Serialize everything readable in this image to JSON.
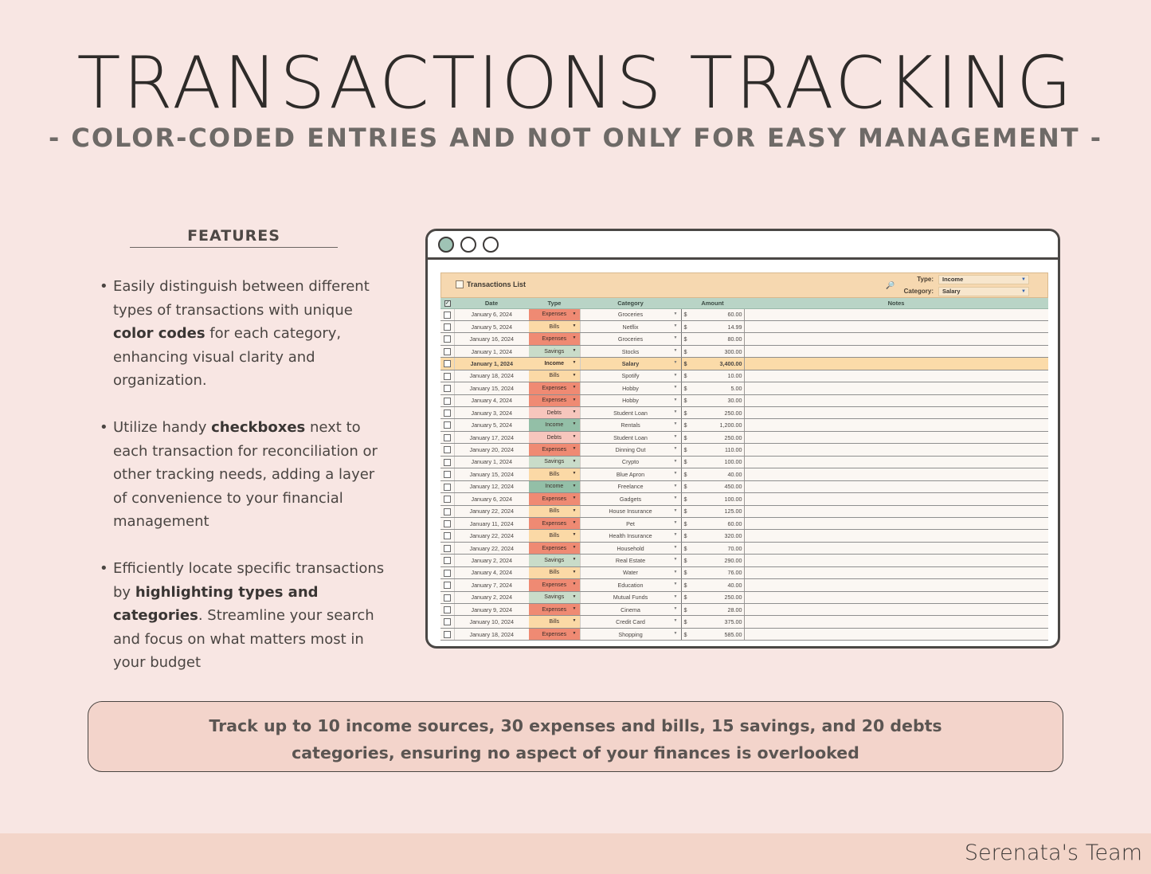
{
  "header": {
    "title": "TRANSACTIONS TRACKING",
    "subtitle": "- COLOR-CODED ENTRIES AND NOT ONLY FOR EASY MANAGEMENT -"
  },
  "features": {
    "title": "FEATURES",
    "items": [
      {
        "pre": "Easily distinguish between different types of transactions with unique ",
        "bold": "color codes",
        "post": " for each category, enhancing visual clarity and organization."
      },
      {
        "pre": "Utilize handy ",
        "bold": "checkboxes",
        "post": " next to each transaction for reconciliation or other tracking needs, adding a layer of convenience to your financial management"
      },
      {
        "pre": "Efficiently locate specific transactions by ",
        "bold": "highlighting types and categories",
        "post": ". Streamline your search and focus on what matters most in your budget"
      }
    ]
  },
  "sheet": {
    "title": "Transactions List",
    "filter_type_label": "Type:",
    "filter_type_value": "Income",
    "filter_category_label": "Category:",
    "filter_category_value": "Salary",
    "columns": [
      "Date",
      "Type",
      "Category",
      "Amount",
      "Notes"
    ],
    "currency": "$",
    "rows": [
      {
        "date": "January 6, 2024",
        "type": "Expenses",
        "category": "Groceries",
        "amount": "60.00"
      },
      {
        "date": "January 5, 2024",
        "type": "Bills",
        "category": "Netflix",
        "amount": "14.99"
      },
      {
        "date": "January 16, 2024",
        "type": "Expenses",
        "category": "Groceries",
        "amount": "80.00"
      },
      {
        "date": "January 1, 2024",
        "type": "Savings",
        "category": "Stocks",
        "amount": "300.00"
      },
      {
        "date": "January 1, 2024",
        "type": "Income",
        "category": "Salary",
        "amount": "3,400.00",
        "highlight": true
      },
      {
        "date": "January 18, 2024",
        "type": "Bills",
        "category": "Spotify",
        "amount": "10.00"
      },
      {
        "date": "January 15, 2024",
        "type": "Expenses",
        "category": "Hobby",
        "amount": "5.00"
      },
      {
        "date": "January 4, 2024",
        "type": "Expenses",
        "category": "Hobby",
        "amount": "30.00"
      },
      {
        "date": "January 3, 2024",
        "type": "Debts",
        "category": "Student Loan",
        "amount": "250.00"
      },
      {
        "date": "January 5, 2024",
        "type": "Income",
        "category": "Rentals",
        "amount": "1,200.00"
      },
      {
        "date": "January 17, 2024",
        "type": "Debts",
        "category": "Student Loan",
        "amount": "250.00"
      },
      {
        "date": "January 20, 2024",
        "type": "Expenses",
        "category": "Dinning Out",
        "amount": "110.00"
      },
      {
        "date": "January 1, 2024",
        "type": "Savings",
        "category": "Crypto",
        "amount": "100.00"
      },
      {
        "date": "January 15, 2024",
        "type": "Bills",
        "category": "Blue Apron",
        "amount": "40.00"
      },
      {
        "date": "January 12, 2024",
        "type": "Income",
        "category": "Freelance",
        "amount": "450.00"
      },
      {
        "date": "January 6, 2024",
        "type": "Expenses",
        "category": "Gadgets",
        "amount": "100.00"
      },
      {
        "date": "January 22, 2024",
        "type": "Bills",
        "category": "House Insurance",
        "amount": "125.00"
      },
      {
        "date": "January 11, 2024",
        "type": "Expenses",
        "category": "Pet",
        "amount": "60.00"
      },
      {
        "date": "January 22, 2024",
        "type": "Bills",
        "category": "Health Insurance",
        "amount": "320.00"
      },
      {
        "date": "January 22, 2024",
        "type": "Expenses",
        "category": "Household",
        "amount": "70.00"
      },
      {
        "date": "January 2, 2024",
        "type": "Savings",
        "category": "Real Estate",
        "amount": "290.00"
      },
      {
        "date": "January 4, 2024",
        "type": "Bills",
        "category": "Water",
        "amount": "76.00"
      },
      {
        "date": "January 7, 2024",
        "type": "Expenses",
        "category": "Education",
        "amount": "40.00"
      },
      {
        "date": "January 2, 2024",
        "type": "Savings",
        "category": "Mutual Funds",
        "amount": "250.00"
      },
      {
        "date": "January 9, 2024",
        "type": "Expenses",
        "category": "Cinema",
        "amount": "28.00"
      },
      {
        "date": "January 10, 2024",
        "type": "Bills",
        "category": "Credit Card",
        "amount": "375.00"
      },
      {
        "date": "January 18, 2024",
        "type": "Expenses",
        "category": "Shopping",
        "amount": "585.00"
      }
    ]
  },
  "banner": {
    "line1": "Track up to 10 income sources, 30 expenses and bills, 15 savings, and 20 debts",
    "line2": "categories, ensuring no aspect of your finances is overlooked"
  },
  "footer": {
    "brand": "Serenata's Team"
  },
  "colors": {
    "background": "#f8e6e3",
    "Expenses": "#ef8a73",
    "Bills": "#fbd9a6",
    "Savings": "#c9dcc9",
    "Income": "#93bfa7",
    "Debts": "#f7c6bd",
    "highlight_row": "#fbdba9"
  }
}
